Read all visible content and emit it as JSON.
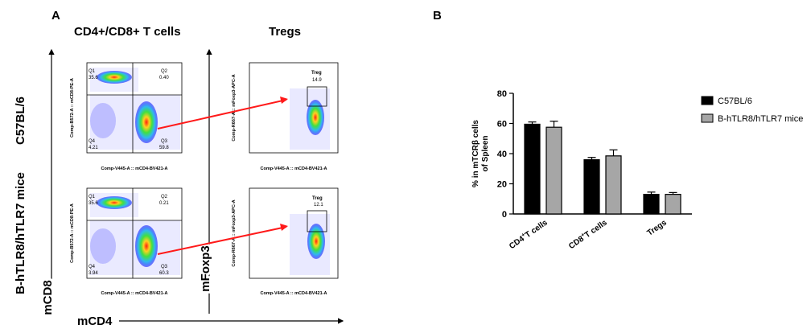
{
  "panel_a": {
    "label": "A",
    "col_titles": [
      "CD4+/CD8+ T cells",
      "Tregs"
    ],
    "row_labels": [
      "C57BL/6",
      "B-hTLR8/hTLR7 mice"
    ],
    "axis_mcd8": "mCD8",
    "axis_mfoxp3": "mFoxp3",
    "axis_mcd4": "mCD4",
    "facs_xlabel": "Comp-V445-A :: mCD4-BV421-A",
    "facs_ylabel_cd8": "Comp-B572-A :: mCD8-PE-A",
    "facs_ylabel_foxp3": "Comp-R667-A :: mFoxp3-APC-A",
    "quadrants": [
      {
        "q1_name": "Q1",
        "q1": "35.6",
        "q2_name": "Q2",
        "q2": "0.40",
        "q3_name": "Q3",
        "q3": "59.8",
        "q4_name": "Q4",
        "q4": "4.21"
      },
      {
        "q1_name": "Q1",
        "q1": "35.6",
        "q2_name": "Q2",
        "q2": "0.21",
        "q3_name": "Q3",
        "q3": "60.3",
        "q4_name": "Q4",
        "q4": "3.94"
      }
    ],
    "treg_gates": [
      {
        "name": "Treg",
        "value": "14.9"
      },
      {
        "name": "Treg",
        "value": "12.1"
      }
    ]
  },
  "panel_b": {
    "label": "B"
  },
  "chart_data": {
    "type": "bar",
    "categories": [
      "CD4+T cells",
      "CD8+T cells",
      "Tregs"
    ],
    "series": [
      {
        "name": "C57BL/6",
        "color": "#000000",
        "values": [
          59.5,
          36,
          13
        ],
        "errors": [
          1.5,
          1.5,
          1.5
        ]
      },
      {
        "name": "B-hTLR8/hTLR7 mice",
        "color": "#a6a6a6",
        "values": [
          57.5,
          38.5,
          13
        ],
        "errors": [
          4,
          4,
          1.2
        ]
      }
    ],
    "title": "",
    "xlabel": "",
    "ylabel": "% in mTCRβ cells of Spleen",
    "ylim": [
      0,
      80
    ],
    "yticks": [
      0,
      20,
      40,
      60,
      80
    ],
    "legend": "right"
  }
}
